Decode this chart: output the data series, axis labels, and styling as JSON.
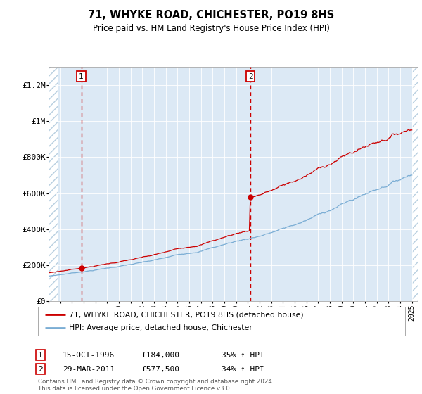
{
  "title": "71, WHYKE ROAD, CHICHESTER, PO19 8HS",
  "subtitle": "Price paid vs. HM Land Registry's House Price Index (HPI)",
  "red_label": "71, WHYKE ROAD, CHICHESTER, PO19 8HS (detached house)",
  "blue_label": "HPI: Average price, detached house, Chichester",
  "footer": "Contains HM Land Registry data © Crown copyright and database right 2024.\nThis data is licensed under the Open Government Licence v3.0.",
  "annotation1_date": "15-OCT-1996",
  "annotation1_price": "£184,000",
  "annotation1_hpi": "35% ↑ HPI",
  "annotation2_date": "29-MAR-2011",
  "annotation2_price": "£577,500",
  "annotation2_hpi": "34% ↑ HPI",
  "xmin": 1994.0,
  "xmax": 2025.5,
  "ymin": 0,
  "ymax": 1300000,
  "yticks": [
    0,
    200000,
    400000,
    600000,
    800000,
    1000000,
    1200000
  ],
  "ytick_labels": [
    "£0",
    "£200K",
    "£400K",
    "£600K",
    "£800K",
    "£1M",
    "£1.2M"
  ],
  "marker1_x": 1996.79,
  "marker1_y": 184000,
  "marker2_x": 2011.23,
  "marker2_y": 577500,
  "bg_color": "#dce9f5",
  "hatch_color": "#b8cfe0",
  "grid_color": "#ffffff",
  "red_color": "#cc0000",
  "blue_color": "#7aadd4"
}
